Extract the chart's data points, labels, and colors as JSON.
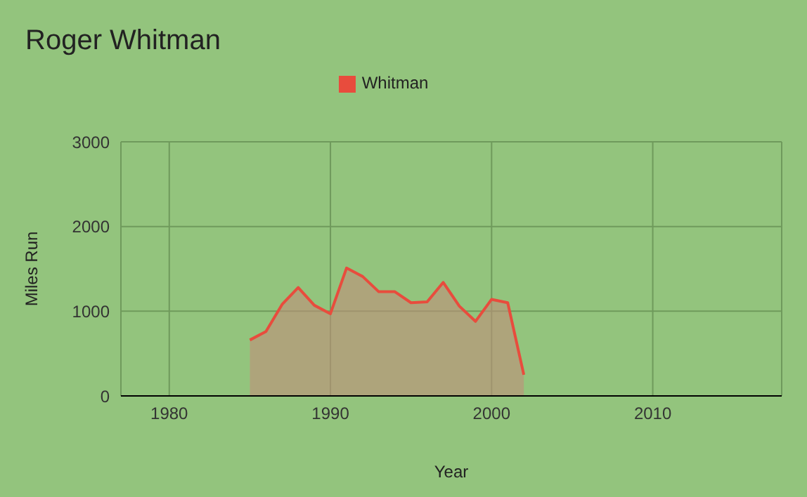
{
  "chart_data": {
    "type": "area",
    "title": "Roger Whitman",
    "xlabel": "Year",
    "ylabel": "Miles Run",
    "x": [
      1985,
      1986,
      1987,
      1988,
      1989,
      1990,
      1991,
      1992,
      1993,
      1994,
      1995,
      1996,
      1997,
      1998,
      1999,
      2000,
      2001,
      2002
    ],
    "series": [
      {
        "name": "Whitman",
        "color": "#e84c3d",
        "values": [
          660,
          760,
          1080,
          1280,
          1070,
          970,
          1510,
          1410,
          1230,
          1230,
          1100,
          1110,
          1340,
          1060,
          880,
          1140,
          1100,
          250
        ]
      }
    ],
    "xlim": [
      1977,
      2018
    ],
    "xticks": [
      1980,
      1990,
      2000,
      2010
    ],
    "ylim": [
      0,
      3000
    ],
    "yticks": [
      0,
      1000,
      2000,
      3000
    ],
    "grid": true,
    "legend": "top"
  }
}
